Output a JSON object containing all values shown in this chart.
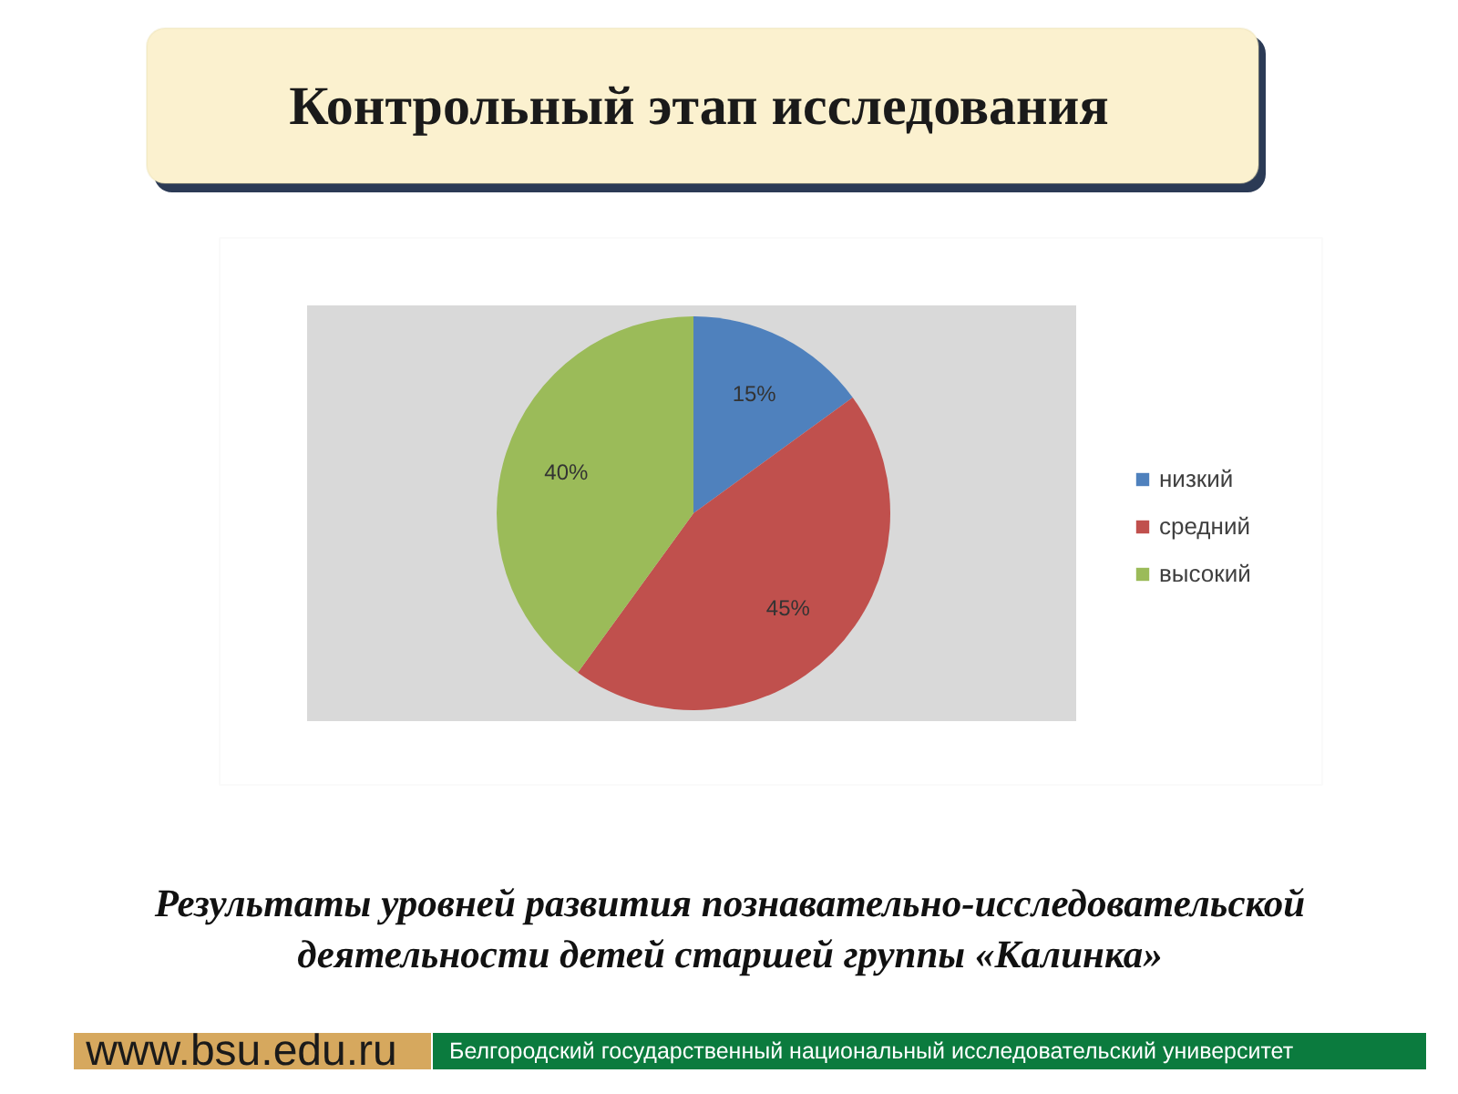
{
  "chart_data": {
    "type": "pie",
    "title": "Контрольный этап исследования",
    "categories": [
      "низкий",
      "средний",
      "высокий"
    ],
    "values": [
      15,
      45,
      40
    ],
    "colors": [
      "#4f81bd",
      "#c0504d",
      "#9bbb59"
    ],
    "value_labels": [
      "15%",
      "45%",
      "40%"
    ],
    "legend": "right",
    "annotations": [
      "Результаты уровней развития познавательно-исследовательской деятельности детей старшей группы «Калинка»",
      "www.bsu.edu.ru",
      "Белгородский государственный национальный исследовательский университет"
    ]
  }
}
